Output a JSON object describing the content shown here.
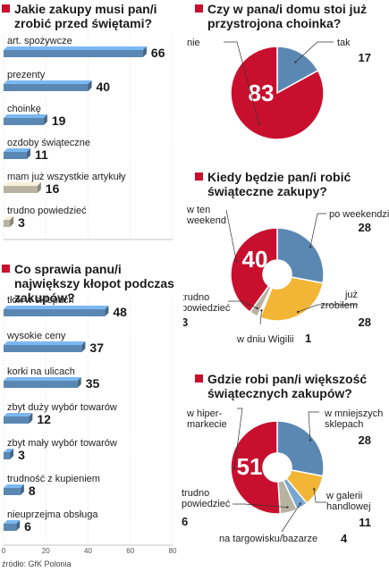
{
  "chart_data": [
    {
      "type": "bar",
      "title": "Jakie zakupy musi pan/i zrobić przed świętami?",
      "categories": [
        "art. spożywcze",
        "prezenty",
        "choinkę",
        "ozdoby świąteczne",
        "mam już wszystkie artykuły",
        "trudno powiedzieć"
      ],
      "values": [
        66,
        40,
        19,
        11,
        16,
        3
      ],
      "colors": [
        "#5b88b3",
        "#5b88b3",
        "#5b88b3",
        "#5b88b3",
        "#b8b2a0",
        "#b8b2a0"
      ],
      "highlight_value_color": "#c8102e",
      "highlight_index": 0,
      "xlim": [
        0,
        80
      ],
      "xticks": [
        "0",
        "20",
        "40",
        "60",
        "80"
      ]
    },
    {
      "type": "bar",
      "title": "Co sprawia panu/i największy kłopot podczas zakupów?",
      "categories": [
        "tłok w sklepach",
        "wysokie ceny",
        "korki na ulicach",
        "zbyt duży wybór towarów",
        "zbyt mały wybór towarów",
        "trudność z kupieniem",
        "nieuprzejma obsługa"
      ],
      "values": [
        48,
        37,
        35,
        12,
        3,
        8,
        6
      ],
      "colors": [
        "#5b88b3",
        "#5b88b3",
        "#5b88b3",
        "#5b88b3",
        "#5b88b3",
        "#5b88b3",
        "#5b88b3"
      ],
      "highlight_value_color": "#c8102e",
      "highlight_index": 0,
      "xlim": [
        0,
        80
      ],
      "xticks": [
        "0",
        "20",
        "40",
        "60",
        "80"
      ]
    },
    {
      "type": "pie",
      "title": "Czy w pana/i domu stoi już przystrojona choinka?",
      "slices": [
        {
          "label": "tak",
          "value": 17,
          "color": "#5b88b3"
        },
        {
          "label": "nie",
          "value": 83,
          "color": "#c8102e"
        }
      ],
      "center_value": "83"
    },
    {
      "type": "pie",
      "title": "Kiedy będzie pan/i robić świąteczne zakupy?",
      "slices": [
        {
          "label": "po weekendzie",
          "value": 28,
          "color": "#5b88b3"
        },
        {
          "label": "już zrobiłem",
          "value": 28,
          "color": "#f2b535"
        },
        {
          "label": "w dniu Wigilii",
          "value": 1,
          "color": "#ffffff"
        },
        {
          "label": "trudno powiedzieć",
          "value": 3,
          "color": "#b8b2a0"
        },
        {
          "label": "w ten weekend",
          "value": 40,
          "color": "#c8102e"
        }
      ],
      "center_value": "40"
    },
    {
      "type": "pie",
      "title": "Gdzie robi pan/i większość świątecznych zakupów?",
      "slices": [
        {
          "label": "w mniejszych sklepach",
          "value": 28,
          "color": "#5b88b3"
        },
        {
          "label": "w galerii handlowej",
          "value": 11,
          "color": "#f2b535"
        },
        {
          "label": "na targowisku/bazarze",
          "value": 4,
          "color": "#7aa7d1"
        },
        {
          "label": "trudno powiedzieć",
          "value": 6,
          "color": "#b8b2a0"
        },
        {
          "label": "w hipermarkecie",
          "value": 51,
          "color": "#c8102e"
        }
      ],
      "center_value": "51"
    }
  ],
  "source": "źródło: GfK Polonia",
  "colors": {
    "accent": "#c8102e",
    "bar": "#5b88b3",
    "neutral": "#b8b2a0"
  }
}
